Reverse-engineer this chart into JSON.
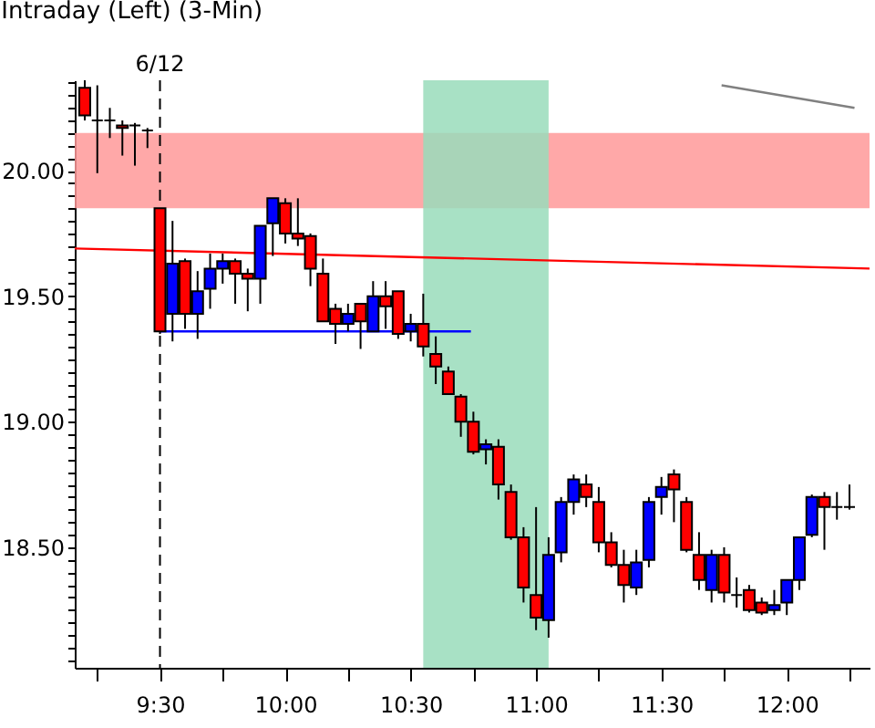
{
  "chart_data": {
    "type": "candlestick",
    "title": "Intraday (Left) (3-Min)",
    "xlim": [
      9.16,
      12.33
    ],
    "ylim": [
      18.02,
      20.36
    ],
    "xticks": [
      {
        "value": 9.25,
        "label": null
      },
      {
        "value": 9.5,
        "label": "9:30"
      },
      {
        "value": 9.75,
        "label": null
      },
      {
        "value": 10,
        "label": "10:00"
      },
      {
        "value": 10.25,
        "label": null
      },
      {
        "value": 10.5,
        "label": "10:30"
      },
      {
        "value": 10.75,
        "label": null
      },
      {
        "value": 11,
        "label": "11:00"
      },
      {
        "value": 11.25,
        "label": null
      },
      {
        "value": 11.5,
        "label": "11:30"
      },
      {
        "value": 11.75,
        "label": null
      },
      {
        "value": 12,
        "label": "12:00"
      },
      {
        "value": 12.25,
        "label": null
      }
    ],
    "yticks": [
      {
        "value": 18.05,
        "label": null
      },
      {
        "value": 18.1,
        "label": null
      },
      {
        "value": 18.15,
        "label": null
      },
      {
        "value": 18.2,
        "label": null
      },
      {
        "value": 18.25,
        "label": null
      },
      {
        "value": 18.3,
        "label": null
      },
      {
        "value": 18.35,
        "label": null
      },
      {
        "value": 18.4,
        "label": null
      },
      {
        "value": 18.45,
        "label": null
      },
      {
        "value": 18.5,
        "label": "18.50"
      },
      {
        "value": 18.55,
        "label": null
      },
      {
        "value": 18.6,
        "label": null
      },
      {
        "value": 18.65,
        "label": null
      },
      {
        "value": 18.7,
        "label": null
      },
      {
        "value": 18.75,
        "label": null
      },
      {
        "value": 18.8,
        "label": null
      },
      {
        "value": 18.85,
        "label": null
      },
      {
        "value": 18.9,
        "label": null
      },
      {
        "value": 18.95,
        "label": null
      },
      {
        "value": 19,
        "label": "19.00"
      },
      {
        "value": 19.05,
        "label": null
      },
      {
        "value": 19.1,
        "label": null
      },
      {
        "value": 19.15,
        "label": null
      },
      {
        "value": 19.2,
        "label": null
      },
      {
        "value": 19.25,
        "label": null
      },
      {
        "value": 19.3,
        "label": null
      },
      {
        "value": 19.35,
        "label": null
      },
      {
        "value": 19.4,
        "label": null
      },
      {
        "value": 19.45,
        "label": null
      },
      {
        "value": 19.5,
        "label": "19.50"
      },
      {
        "value": 19.55,
        "label": null
      },
      {
        "value": 19.6,
        "label": null
      },
      {
        "value": 19.65,
        "label": null
      },
      {
        "value": 19.7,
        "label": null
      },
      {
        "value": 19.75,
        "label": null
      },
      {
        "value": 19.8,
        "label": null
      },
      {
        "value": 19.85,
        "label": null
      },
      {
        "value": 19.9,
        "label": null
      },
      {
        "value": 19.95,
        "label": null
      },
      {
        "value": 20,
        "label": "20.00"
      },
      {
        "value": 20.05,
        "label": null
      },
      {
        "value": 20.1,
        "label": null
      },
      {
        "value": 20.15,
        "label": null
      },
      {
        "value": 20.2,
        "label": null
      },
      {
        "value": 20.25,
        "label": null
      },
      {
        "value": 20.3,
        "label": null
      },
      {
        "value": 20.35,
        "label": null
      }
    ],
    "grid": false,
    "annotations": [
      "6/12"
    ],
    "bands": [
      {
        "axis": "y",
        "from": 19.85,
        "to": 20.15,
        "color": "#ff9999"
      },
      {
        "axis": "x",
        "from": 10.55,
        "to": 11.05,
        "color": "#99dcbb"
      }
    ],
    "ref_lines": [
      {
        "axis": "x",
        "value": 9.5,
        "color": "#000000",
        "line_style": "dashed"
      }
    ],
    "series": [
      {
        "x": [
          9.2,
          9.25,
          9.3,
          9.35,
          9.4,
          9.45,
          9.5,
          9.55,
          9.6,
          9.65,
          9.7,
          9.75,
          9.8,
          9.85,
          9.9,
          9.95,
          10,
          10.05,
          10.1,
          10.15,
          10.2,
          10.25,
          10.3,
          10.35,
          10.4,
          10.45,
          10.5,
          10.55,
          10.6,
          10.65,
          10.7,
          10.75,
          10.8,
          10.85,
          10.9,
          10.95,
          11,
          11.05,
          11.1,
          11.15,
          11.2,
          11.25,
          11.3,
          11.35,
          11.4,
          11.45,
          11.5,
          11.55,
          11.6,
          11.65,
          11.7,
          11.75,
          11.8,
          11.85,
          11.9,
          11.95,
          12,
          12.05,
          12.1,
          12.15,
          12.2,
          12.25
        ],
        "ohlc": [
          [
            20.33,
            20.36,
            20.2,
            20.22
          ],
          [
            20.2,
            20.34,
            19.99,
            20.2
          ],
          [
            20.2,
            20.25,
            20.13,
            20.2
          ],
          [
            20.18,
            20.2,
            20.06,
            20.17
          ],
          [
            20.18,
            20.19,
            20.02,
            20.18
          ],
          [
            20.16,
            20.17,
            20.09,
            20.16
          ],
          [
            19.85,
            19.85,
            19.35,
            19.36
          ],
          [
            19.43,
            19.8,
            19.32,
            19.63
          ],
          [
            19.64,
            19.65,
            19.37,
            19.43
          ],
          [
            19.43,
            19.6,
            19.33,
            19.52
          ],
          [
            19.53,
            19.67,
            19.45,
            19.61
          ],
          [
            19.61,
            19.67,
            19.55,
            19.64
          ],
          [
            19.64,
            19.65,
            19.47,
            19.59
          ],
          [
            19.59,
            19.61,
            19.44,
            19.57
          ],
          [
            19.57,
            19.78,
            19.47,
            19.78
          ],
          [
            19.79,
            19.89,
            19.66,
            19.89
          ],
          [
            19.87,
            19.89,
            19.71,
            19.75
          ],
          [
            19.75,
            19.89,
            19.7,
            19.73
          ],
          [
            19.74,
            19.75,
            19.54,
            19.61
          ],
          [
            19.59,
            19.65,
            19.4,
            19.4
          ],
          [
            19.45,
            19.47,
            19.31,
            19.39
          ],
          [
            19.39,
            19.47,
            19.36,
            19.43
          ],
          [
            19.47,
            19.47,
            19.29,
            19.4
          ],
          [
            19.36,
            19.56,
            19.36,
            19.5
          ],
          [
            19.5,
            19.56,
            19.37,
            19.46
          ],
          [
            19.52,
            19.52,
            19.33,
            19.35
          ],
          [
            19.36,
            19.43,
            19.32,
            19.39
          ],
          [
            19.39,
            19.51,
            19.26,
            19.3
          ],
          [
            19.27,
            19.34,
            19.15,
            19.22
          ],
          [
            19.2,
            19.22,
            19.11,
            19.11
          ],
          [
            19.1,
            19.11,
            18.94,
            19.0
          ],
          [
            19.0,
            19.04,
            18.87,
            18.88
          ],
          [
            18.89,
            18.93,
            18.83,
            18.91
          ],
          [
            18.9,
            18.93,
            18.69,
            18.75
          ],
          [
            18.72,
            18.75,
            18.53,
            18.54
          ],
          [
            18.54,
            18.58,
            18.28,
            18.34
          ],
          [
            18.31,
            18.66,
            18.17,
            18.22
          ],
          [
            18.21,
            18.54,
            18.14,
            18.47
          ],
          [
            18.48,
            18.7,
            18.44,
            18.68
          ],
          [
            18.68,
            18.79,
            18.63,
            18.77
          ],
          [
            18.75,
            18.79,
            18.66,
            18.7
          ],
          [
            18.68,
            18.74,
            18.48,
            18.52
          ],
          [
            18.52,
            18.56,
            18.42,
            18.43
          ],
          [
            18.43,
            18.49,
            18.28,
            18.35
          ],
          [
            18.34,
            18.49,
            18.31,
            18.44
          ],
          [
            18.45,
            18.7,
            18.42,
            18.68
          ],
          [
            18.7,
            18.78,
            18.63,
            18.74
          ],
          [
            18.79,
            18.81,
            18.6,
            18.73
          ],
          [
            18.68,
            18.7,
            18.48,
            18.49
          ],
          [
            18.47,
            18.56,
            18.33,
            18.37
          ],
          [
            18.33,
            18.49,
            18.28,
            18.47
          ],
          [
            18.47,
            18.5,
            18.28,
            18.32
          ],
          [
            18.31,
            18.38,
            18.26,
            18.31
          ],
          [
            18.33,
            18.35,
            18.24,
            18.25
          ],
          [
            18.28,
            18.3,
            18.23,
            18.24
          ],
          [
            18.25,
            18.33,
            18.23,
            18.27
          ],
          [
            18.28,
            18.37,
            18.23,
            18.37
          ],
          [
            18.37,
            18.54,
            18.33,
            18.54
          ],
          [
            18.55,
            18.71,
            18.54,
            18.7
          ],
          [
            18.7,
            18.72,
            18.49,
            18.66
          ],
          [
            18.66,
            18.72,
            18.61,
            18.66
          ],
          [
            18.66,
            18.75,
            18.65,
            18.66
          ]
        ],
        "colors": [
          "#ff0000",
          "#000000",
          "#000000",
          "#ff0000",
          "#000000",
          "#000000",
          "#ff0000",
          "#0000ff",
          "#ff0000",
          "#0000ff",
          "#0000ff",
          "#0000ff",
          "#ff0000",
          "#ff0000",
          "#0000ff",
          "#0000ff",
          "#ff0000",
          "#ff0000",
          "#ff0000",
          "#ff0000",
          "#ff0000",
          "#0000ff",
          "#ff0000",
          "#0000ff",
          "#ff0000",
          "#ff0000",
          "#0000ff",
          "#ff0000",
          "#ff0000",
          "#ff0000",
          "#ff0000",
          "#ff0000",
          "#0000ff",
          "#ff0000",
          "#ff0000",
          "#ff0000",
          "#ff0000",
          "#0000ff",
          "#0000ff",
          "#0000ff",
          "#ff0000",
          "#ff0000",
          "#ff0000",
          "#ff0000",
          "#0000ff",
          "#0000ff",
          "#0000ff",
          "#ff0000",
          "#ff0000",
          "#ff0000",
          "#0000ff",
          "#ff0000",
          "#000000",
          "#ff0000",
          "#ff0000",
          "#0000ff",
          "#0000ff",
          "#0000ff",
          "#0000ff",
          "#ff0000",
          "#000000",
          "#000000"
        ]
      },
      {
        "type": "line",
        "x": [
          9.16,
          12.33
        ],
        "values": [
          19.69,
          19.61
        ],
        "color": "#ff0000"
      },
      {
        "type": "line",
        "x": [
          9.5,
          10.74
        ],
        "values": [
          19.36,
          19.36
        ],
        "color": "#0000ff"
      },
      {
        "type": "line",
        "x": [
          11.74,
          12.27
        ],
        "values": [
          20.34,
          20.25
        ],
        "color": "#808080"
      }
    ]
  }
}
